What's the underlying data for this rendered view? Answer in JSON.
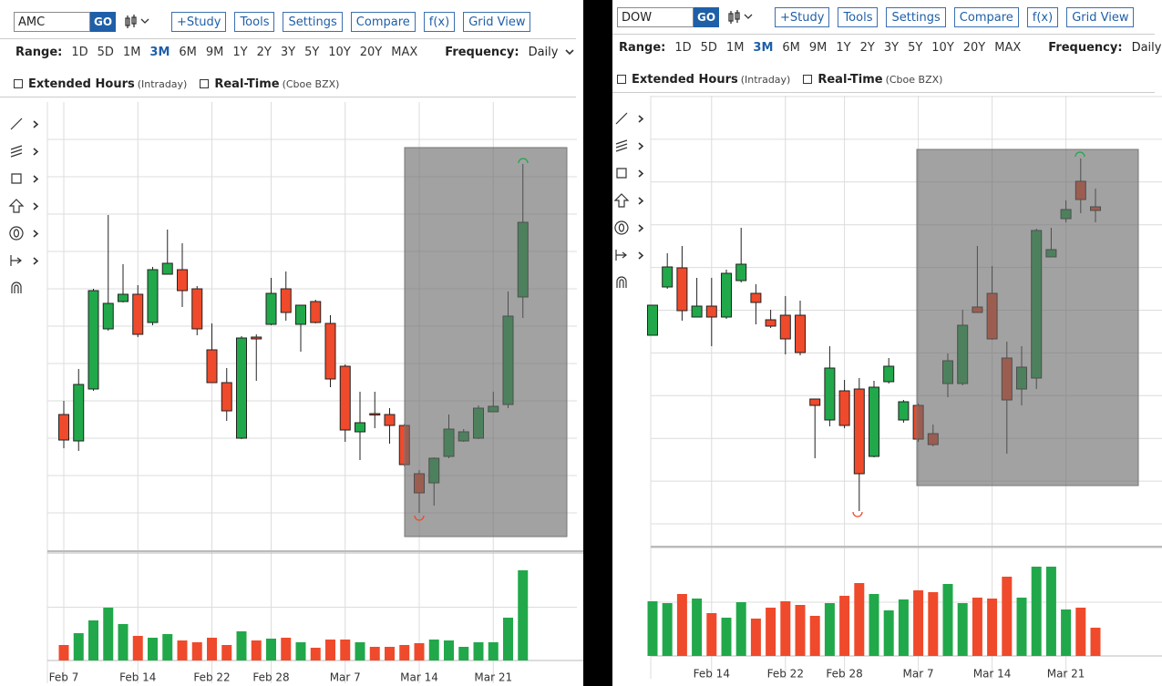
{
  "panels": [
    {
      "symbol": "AMC",
      "go": "GO",
      "buttons": [
        "+Study",
        "Tools",
        "Settings",
        "Compare",
        "f(x)",
        "Grid View"
      ],
      "range_label": "Range:",
      "ranges": [
        "1D",
        "5D",
        "1M",
        "3M",
        "6M",
        "9M",
        "1Y",
        "2Y",
        "3Y",
        "5Y",
        "10Y",
        "20Y",
        "MAX"
      ],
      "active_range_index": 3,
      "frequency_label": "Frequency:",
      "frequency": "Daily",
      "period": "3M",
      "options": [
        {
          "label": "Extended Hours",
          "note": "(Intraday)"
        },
        {
          "label": "Real-Time",
          "note": "(Cboe BZX)"
        }
      ],
      "chart_data": {
        "type": "candlestick",
        "categories": [
          "Feb 7",
          null,
          null,
          null,
          null,
          "Feb 14",
          null,
          null,
          null,
          null,
          "Feb 22",
          null,
          null,
          null,
          "Feb 28",
          null,
          null,
          null,
          null,
          "Mar 7",
          null,
          null,
          null,
          null,
          "Mar 14",
          null,
          null,
          null,
          null,
          "Mar 21",
          null,
          null
        ],
        "open": [
          150,
          121,
          178,
          244,
          274,
          282,
          251,
          304,
          309,
          288,
          221,
          185,
          124,
          235,
          249,
          288,
          249,
          274,
          250,
          203,
          131,
          151,
          150,
          138,
          85,
          75,
          104,
          121,
          124,
          153,
          161,
          279
        ],
        "high": [
          165,
          200,
          288,
          369,
          315,
          292,
          312,
          353,
          338,
          291,
          250,
          201,
          236,
          238,
          300,
          307,
          270,
          276,
          259,
          205,
          175,
          175,
          157,
          140,
          89,
          103,
          150,
          134,
          160,
          175,
          285,
          425
        ],
        "low": [
          113,
          110,
          176,
          242,
          273,
          235,
          248,
          304,
          268,
          237,
          185,
          143,
          123,
          187,
          248,
          253,
          219,
          250,
          180,
          120,
          100,
          135,
          118,
          93,
          42,
          50,
          102,
          120,
          123,
          153,
          157,
          256
        ],
        "close": [
          122,
          183,
          286,
          272,
          282,
          238,
          309,
          316,
          286,
          244,
          185,
          154,
          234,
          233,
          283,
          262,
          270,
          251,
          189,
          133,
          141,
          150,
          138,
          95,
          64,
          102,
          134,
          131,
          157,
          159,
          258,
          361
        ],
        "volume": [
          17,
          30,
          44,
          58,
          40,
          27,
          25,
          29,
          22,
          20,
          25,
          17,
          32,
          22,
          24,
          25,
          20,
          14,
          23,
          23,
          20,
          15,
          15,
          17,
          19,
          23,
          22,
          15,
          20,
          20,
          47,
          99
        ],
        "ylim": [
          0,
          493
        ],
        "volume_ylim": [
          0,
          117
        ],
        "up_color": "#21a84a",
        "down_color": "#ef4a2b",
        "grid": true
      }
    },
    {
      "symbol": "DOW",
      "go": "GO",
      "buttons": [
        "+Study",
        "Tools",
        "Settings",
        "Compare",
        "f(x)",
        "Grid View"
      ],
      "range_label": "Range:",
      "ranges": [
        "1D",
        "5D",
        "1M",
        "3M",
        "6M",
        "9M",
        "1Y",
        "2Y",
        "3Y",
        "5Y",
        "10Y",
        "20Y",
        "MAX"
      ],
      "active_range_index": 3,
      "frequency_label": "Frequency:",
      "frequency": "Daily",
      "period": "3M",
      "options": [
        {
          "label": "Extended Hours",
          "note": "(Intraday)"
        },
        {
          "label": "Real-Time",
          "note": "(Cboe BZX)"
        }
      ],
      "chart_data": {
        "type": "candlestick",
        "categories": [
          null,
          null,
          null,
          null,
          "Feb 14",
          null,
          null,
          null,
          null,
          "Feb 22",
          null,
          null,
          null,
          "Feb 28",
          null,
          null,
          null,
          null,
          "Mar 7",
          null,
          null,
          null,
          null,
          "Mar 14",
          null,
          null,
          null,
          null,
          "Mar 21",
          null,
          null
        ],
        "open": [
          232,
          285,
          306,
          252,
          264,
          252,
          292,
          278,
          249,
          254,
          254,
          162,
          139,
          171,
          173,
          99,
          181,
          139,
          155,
          124,
          179,
          179,
          263,
          278,
          207,
          173,
          185,
          318,
          360,
          401,
          373
        ],
        "high": [
          265,
          322,
          330,
          295,
          295,
          304,
          350,
          288,
          260,
          275,
          270,
          162,
          220,
          183,
          185,
          182,
          207,
          161,
          157,
          134,
          212,
          260,
          330,
          308,
          225,
          220,
          349,
          350,
          380,
          426,
          393
        ],
        "low": [
          232,
          283,
          248,
          252,
          220,
          250,
          290,
          244,
          240,
          211,
          210,
          97,
          132,
          130,
          39,
          98,
          179,
          136,
          115,
          110,
          164,
          177,
          257,
          227,
          102,
          155,
          173,
          318,
          356,
          366,
          356
        ],
        "close": [
          265,
          307,
          259,
          264,
          252,
          300,
          310,
          268,
          242,
          228,
          213,
          155,
          196,
          133,
          80,
          175,
          198,
          159,
          118,
          112,
          204,
          243,
          257,
          228,
          161,
          197,
          347,
          326,
          370,
          381,
          369
        ],
        "volume": [
          60,
          58,
          68,
          63,
          47,
          42,
          59,
          41,
          53,
          60,
          56,
          44,
          58,
          66,
          80,
          68,
          50,
          62,
          72,
          70,
          79,
          58,
          64,
          63,
          87,
          64,
          98,
          98,
          51,
          53,
          31
        ],
        "ylim": [
          0,
          495
        ],
        "volume_ylim": [
          0,
          118
        ],
        "up_color": "#21a84a",
        "down_color": "#ef4a2b",
        "grid": true
      }
    }
  ]
}
